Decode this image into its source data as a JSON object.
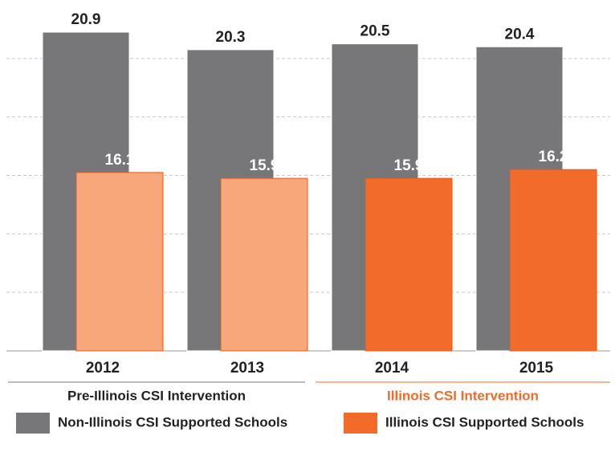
{
  "chart_data": {
    "type": "bar",
    "categories": [
      "2012",
      "2013",
      "2014",
      "2015"
    ],
    "series": [
      {
        "name": "Non-Illinois CSI Supported Schools",
        "color": "#77777a",
        "values": [
          20.9,
          20.3,
          20.5,
          20.4
        ]
      },
      {
        "name": "Illinois CSI Supported Schools",
        "color": "#f26b2a",
        "colors": [
          "#f8a77a",
          "#f8a77a",
          "#f26b2a",
          "#f26b2a"
        ],
        "values": [
          16.1,
          15.9,
          15.9,
          16.2
        ]
      }
    ],
    "groups": [
      {
        "name": "Pre-Illinois CSI Intervention",
        "color": "#77777a",
        "text_color": "#222222",
        "categories": [
          "2012",
          "2013"
        ]
      },
      {
        "name": "Illinois CSI Intervention",
        "color": "#f26b2a",
        "text_color": "#f26b2a",
        "categories": [
          "2014",
          "2015"
        ]
      }
    ],
    "ylim": [
      10,
      22
    ],
    "yticks": [
      12,
      14,
      16,
      18,
      20
    ],
    "grid": true,
    "legend": "bottom"
  }
}
